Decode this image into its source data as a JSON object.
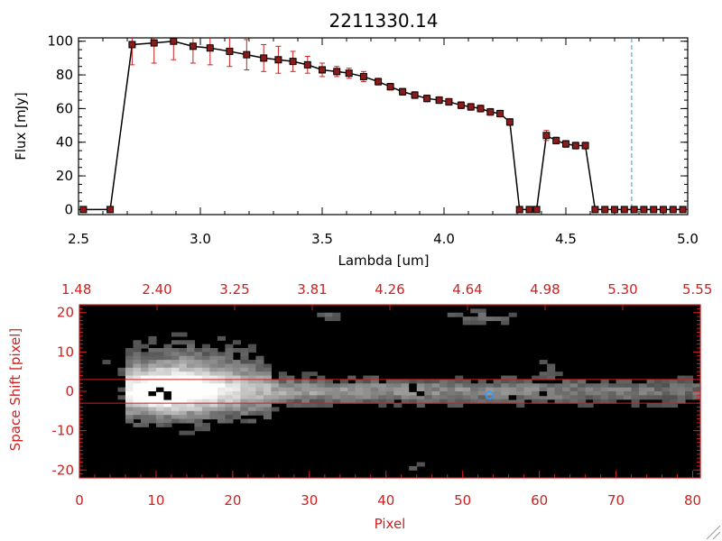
{
  "chart_data": [
    {
      "type": "line",
      "title": "2211330.14",
      "xlabel": "Lambda [um]",
      "ylabel": "Flux [mJy]",
      "xlim": [
        2.5,
        5.0
      ],
      "ylim": [
        -3,
        102
      ],
      "x_ticks": [
        "2.5",
        "3.0",
        "3.5",
        "4.0",
        "4.5",
        "5.0"
      ],
      "y_ticks": [
        "0",
        "20",
        "40",
        "60",
        "80",
        "100"
      ],
      "grid": false,
      "line_color": "#000000",
      "marker_color": "#8b1a1a",
      "errorbar_color": "#cc2222",
      "reference_line": {
        "x": 4.77,
        "color": "#3399cc",
        "style": "dashed"
      },
      "series": [
        {
          "x": [
            2.52,
            2.63,
            2.72,
            2.81,
            2.89,
            2.97,
            3.04,
            3.12,
            3.19,
            3.26,
            3.32,
            3.38,
            3.44,
            3.5,
            3.56,
            3.61,
            3.67,
            3.73,
            3.78,
            3.83,
            3.88,
            3.93,
            3.98,
            4.02,
            4.07,
            4.11,
            4.15,
            4.19,
            4.23,
            4.27,
            4.31,
            4.35,
            4.38,
            4.42,
            4.46,
            4.5,
            4.54,
            4.58,
            4.62,
            4.66,
            4.7,
            4.74,
            4.78,
            4.82,
            4.86,
            4.9,
            4.94,
            4.98
          ],
          "y": [
            0,
            0,
            98,
            99,
            100,
            97,
            96,
            94,
            92,
            90,
            89,
            88,
            86,
            83,
            82,
            81,
            79,
            76,
            73,
            70,
            68,
            66,
            65,
            64,
            62,
            61,
            60,
            58,
            57,
            52,
            0,
            0,
            0,
            44,
            41,
            39,
            38,
            38,
            0,
            0,
            0,
            0,
            0,
            0,
            0,
            0,
            0,
            0
          ],
          "yerr": [
            0,
            0,
            12,
            12,
            11,
            10,
            10,
            9,
            9,
            8,
            8,
            6,
            5,
            4,
            3,
            3,
            3,
            2,
            2,
            2,
            2,
            2,
            2,
            2,
            2,
            2,
            2,
            2,
            2,
            2,
            0,
            0,
            0,
            3,
            2,
            2,
            2,
            2,
            0,
            0,
            0,
            0,
            0,
            0,
            0,
            0,
            0,
            0
          ]
        }
      ]
    },
    {
      "type": "heatmap",
      "xlabel": "Pixel",
      "ylabel": "Space Shift [pixel]",
      "xlim": [
        0,
        81
      ],
      "ylim": [
        -22,
        22
      ],
      "x_ticks": [
        "0",
        "10",
        "20",
        "30",
        "40",
        "50",
        "60",
        "70",
        "80"
      ],
      "y_ticks": [
        "-20",
        "-10",
        "0",
        "10",
        "20"
      ],
      "top_axis_label_values": [
        "1.48",
        "2.40",
        "3.25",
        "3.81",
        "4.26",
        "4.64",
        "4.98",
        "5.30",
        "5.55"
      ],
      "axis_color": "#cc2222",
      "extraction_band": [
        -3,
        3
      ],
      "band_color": "#cc2222",
      "marker": {
        "x": 53.5,
        "y": -1,
        "color": "#3399ff"
      },
      "trace": {
        "start_x": 6,
        "end_x": 80,
        "center_y": 0,
        "peak_x": 11
      }
    }
  ]
}
